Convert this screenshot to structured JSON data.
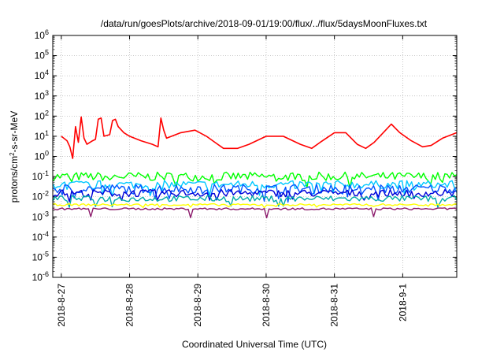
{
  "chart_data": {
    "type": "line",
    "title": "/data/run/goesPlots/archive/2018-09-01/19:00/flux/../flux/5daysMoonFluxes.txt",
    "xlabel": "Coordinated Universal Time (UTC)",
    "ylabel": {
      "pre": "protons/cm",
      "sup": "2",
      "post": "-s-sr-MeV"
    },
    "y_scale": "log",
    "ylim_exp": [
      -6,
      6
    ],
    "yticks": [
      {
        "base": "10",
        "exp": "6"
      },
      {
        "base": "10",
        "exp": "5"
      },
      {
        "base": "10",
        "exp": "4"
      },
      {
        "base": "10",
        "exp": "3"
      },
      {
        "base": "10",
        "exp": "2"
      },
      {
        "base": "10",
        "exp": "1"
      },
      {
        "base": "10",
        "exp": "0"
      },
      {
        "base": "10",
        "exp": "-1"
      },
      {
        "base": "10",
        "exp": "-2"
      },
      {
        "base": "10",
        "exp": "-3"
      },
      {
        "base": "10",
        "exp": "-4"
      },
      {
        "base": "10",
        "exp": "-5"
      },
      {
        "base": "10",
        "exp": "-6"
      }
    ],
    "x_range_days": [
      "2018-08-26T21:00",
      "2018-09-01T19:00"
    ],
    "xticks": [
      {
        "label": "2018-8-27",
        "date": "2018-08-27T00:00"
      },
      {
        "label": "2018-8-28",
        "date": "2018-08-28T00:00"
      },
      {
        "label": "2018-8-29",
        "date": "2018-08-29T00:00"
      },
      {
        "label": "2018-8-30",
        "date": "2018-08-30T00:00"
      },
      {
        "label": "2018-8-31",
        "date": "2018-08-31T00:00"
      },
      {
        "label": "2018-9-1",
        "date": "2018-09-01T00:00"
      }
    ],
    "grid": true,
    "series": [
      {
        "color": "#ff0000",
        "points": [
          [
            "2018-08-27T00:00",
            10
          ],
          [
            "2018-08-27T02:00",
            6
          ],
          [
            "2018-08-27T03:00",
            3
          ],
          [
            "2018-08-27T04:00",
            0.8
          ],
          [
            "2018-08-27T05:00",
            30
          ],
          [
            "2018-08-27T06:00",
            5
          ],
          [
            "2018-08-27T07:00",
            90
          ],
          [
            "2018-08-27T08:00",
            8
          ],
          [
            "2018-08-27T09:00",
            4
          ],
          [
            "2018-08-27T11:00",
            6
          ],
          [
            "2018-08-27T12:00",
            7
          ],
          [
            "2018-08-27T13:00",
            70
          ],
          [
            "2018-08-27T14:00",
            80
          ],
          [
            "2018-08-27T15:00",
            10
          ],
          [
            "2018-08-27T17:00",
            12
          ],
          [
            "2018-08-27T18:00",
            60
          ],
          [
            "2018-08-27T19:00",
            70
          ],
          [
            "2018-08-27T20:00",
            30
          ],
          [
            "2018-08-27T22:00",
            15
          ],
          [
            "2018-08-28T00:00",
            10
          ],
          [
            "2018-08-28T04:00",
            6
          ],
          [
            "2018-08-28T08:00",
            4
          ],
          [
            "2018-08-28T10:00",
            3
          ],
          [
            "2018-08-28T11:00",
            80
          ],
          [
            "2018-08-28T12:00",
            20
          ],
          [
            "2018-08-28T13:00",
            8
          ],
          [
            "2018-08-28T18:00",
            15
          ],
          [
            "2018-08-28T23:00",
            20
          ],
          [
            "2018-08-29T03:00",
            10
          ],
          [
            "2018-08-29T06:00",
            5
          ],
          [
            "2018-08-29T09:00",
            2.5
          ],
          [
            "2018-08-29T14:00",
            2.5
          ],
          [
            "2018-08-29T18:00",
            4
          ],
          [
            "2018-08-30T00:00",
            10
          ],
          [
            "2018-08-30T06:00",
            10
          ],
          [
            "2018-08-30T12:00",
            4
          ],
          [
            "2018-08-30T16:00",
            2.5
          ],
          [
            "2018-08-30T19:00",
            5
          ],
          [
            "2018-08-31T00:00",
            15
          ],
          [
            "2018-08-31T04:00",
            15
          ],
          [
            "2018-08-31T08:00",
            4
          ],
          [
            "2018-08-31T11:00",
            2.5
          ],
          [
            "2018-08-31T14:00",
            5
          ],
          [
            "2018-08-31T18:00",
            20
          ],
          [
            "2018-08-31T20:00",
            40
          ],
          [
            "2018-08-31T23:00",
            15
          ],
          [
            "2018-09-01T03:00",
            6
          ],
          [
            "2018-09-01T07:00",
            3
          ],
          [
            "2018-09-01T10:00",
            3.5
          ],
          [
            "2018-09-01T14:00",
            8
          ],
          [
            "2018-09-01T19:00",
            15
          ]
        ]
      },
      {
        "color": "#00ff00",
        "level": 0.1,
        "amp": 0.22,
        "dips": 2.2
      },
      {
        "color": "#00c8ff",
        "level": 0.04,
        "amp": 0.2,
        "dips": 2.5
      },
      {
        "color": "#0055ff",
        "level": 0.025,
        "amp": 0.22,
        "dips": 2.8
      },
      {
        "color": "#0000d8",
        "level": 0.015,
        "amp": 0.18,
        "dips": 2.2
      },
      {
        "color": "#00aaaa",
        "level": 0.008,
        "amp": 0.15,
        "dips": 2.0
      },
      {
        "color": "#ffff00",
        "level": 0.004,
        "amp": 0.05,
        "dips": 1.3
      },
      {
        "color": "#8b1a6b",
        "level": 0.0025,
        "amp": 0.05,
        "dips": 2.5
      }
    ]
  }
}
